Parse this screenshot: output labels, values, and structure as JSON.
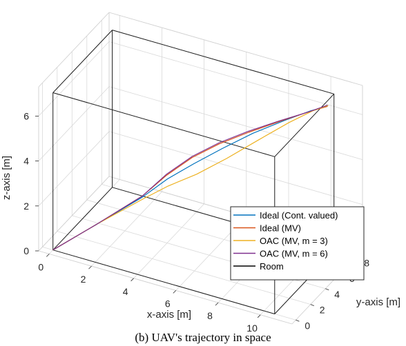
{
  "caption": "(b) UAV's trajectory in space",
  "chart_data": {
    "type": "line3d",
    "title": "",
    "xlabel": "x-axis [m]",
    "ylabel": "y-axis [m]",
    "zlabel": "z-axis [m]",
    "xlim": [
      -0.5,
      11.5
    ],
    "ylim": [
      -0.5,
      9
    ],
    "zlim": [
      0,
      7.3
    ],
    "x_ticks": [
      "0",
      "2",
      "4",
      "6",
      "8",
      "10"
    ],
    "y_ticks": [
      "0",
      "2",
      "4",
      "6",
      "8"
    ],
    "z_ticks": [
      "0",
      "2",
      "4",
      "6"
    ],
    "grid": true,
    "legend_position": "bottom-right",
    "room": {
      "x": [
        0,
        10.5
      ],
      "y": [
        0,
        8
      ],
      "z": [
        0,
        7
      ]
    },
    "series": [
      {
        "name": "Ideal (Cont. valued)",
        "color": "#0072BD",
        "points": [
          [
            0,
            0,
            0
          ],
          [
            2,
            0.3,
            1.6
          ],
          [
            4,
            0.7,
            3.2
          ],
          [
            5,
            1.2,
            4.1
          ],
          [
            6,
            1.9,
            4.8
          ],
          [
            7,
            2.9,
            5.4
          ],
          [
            8,
            4.2,
            5.9
          ],
          [
            9,
            5.6,
            6.25
          ],
          [
            9.8,
            6.9,
            6.45
          ],
          [
            10.3,
            7.7,
            6.5
          ]
        ]
      },
      {
        "name": "Ideal (MV)",
        "color": "#D95319",
        "points": [
          [
            0,
            0,
            0
          ],
          [
            2,
            0.3,
            1.6
          ],
          [
            4,
            0.7,
            3.25
          ],
          [
            5,
            1.1,
            4.3
          ],
          [
            6,
            1.7,
            5.15
          ],
          [
            7,
            2.5,
            5.75
          ],
          [
            8,
            3.6,
            6.15
          ],
          [
            9,
            5.1,
            6.4
          ],
          [
            9.8,
            6.6,
            6.5
          ],
          [
            10.3,
            7.7,
            6.5
          ]
        ]
      },
      {
        "name": "OAC (MV, m = 3)",
        "color": "#EDB120",
        "points": [
          [
            0,
            0,
            0
          ],
          [
            2,
            0.3,
            1.6
          ],
          [
            4,
            0.7,
            3.1
          ],
          [
            5,
            1.3,
            3.75
          ],
          [
            6,
            2.3,
            4.2
          ],
          [
            7,
            3.5,
            4.75
          ],
          [
            8,
            4.9,
            5.35
          ],
          [
            9,
            6.2,
            5.95
          ],
          [
            9.8,
            7.2,
            6.35
          ],
          [
            10.3,
            7.8,
            6.5
          ]
        ]
      },
      {
        "name": "OAC (MV, m = 6)",
        "color": "#7E2F8E",
        "points": [
          [
            0,
            0,
            0
          ],
          [
            2,
            0.3,
            1.6
          ],
          [
            4,
            0.7,
            3.25
          ],
          [
            5,
            1.1,
            4.35
          ],
          [
            6,
            1.7,
            5.2
          ],
          [
            7,
            2.5,
            5.8
          ],
          [
            8,
            3.6,
            6.2
          ],
          [
            9,
            5.0,
            6.45
          ],
          [
            9.8,
            6.6,
            6.5
          ],
          [
            10.3,
            7.7,
            6.55
          ]
        ]
      },
      {
        "name": "Room",
        "color": "#000000",
        "points": []
      }
    ]
  }
}
